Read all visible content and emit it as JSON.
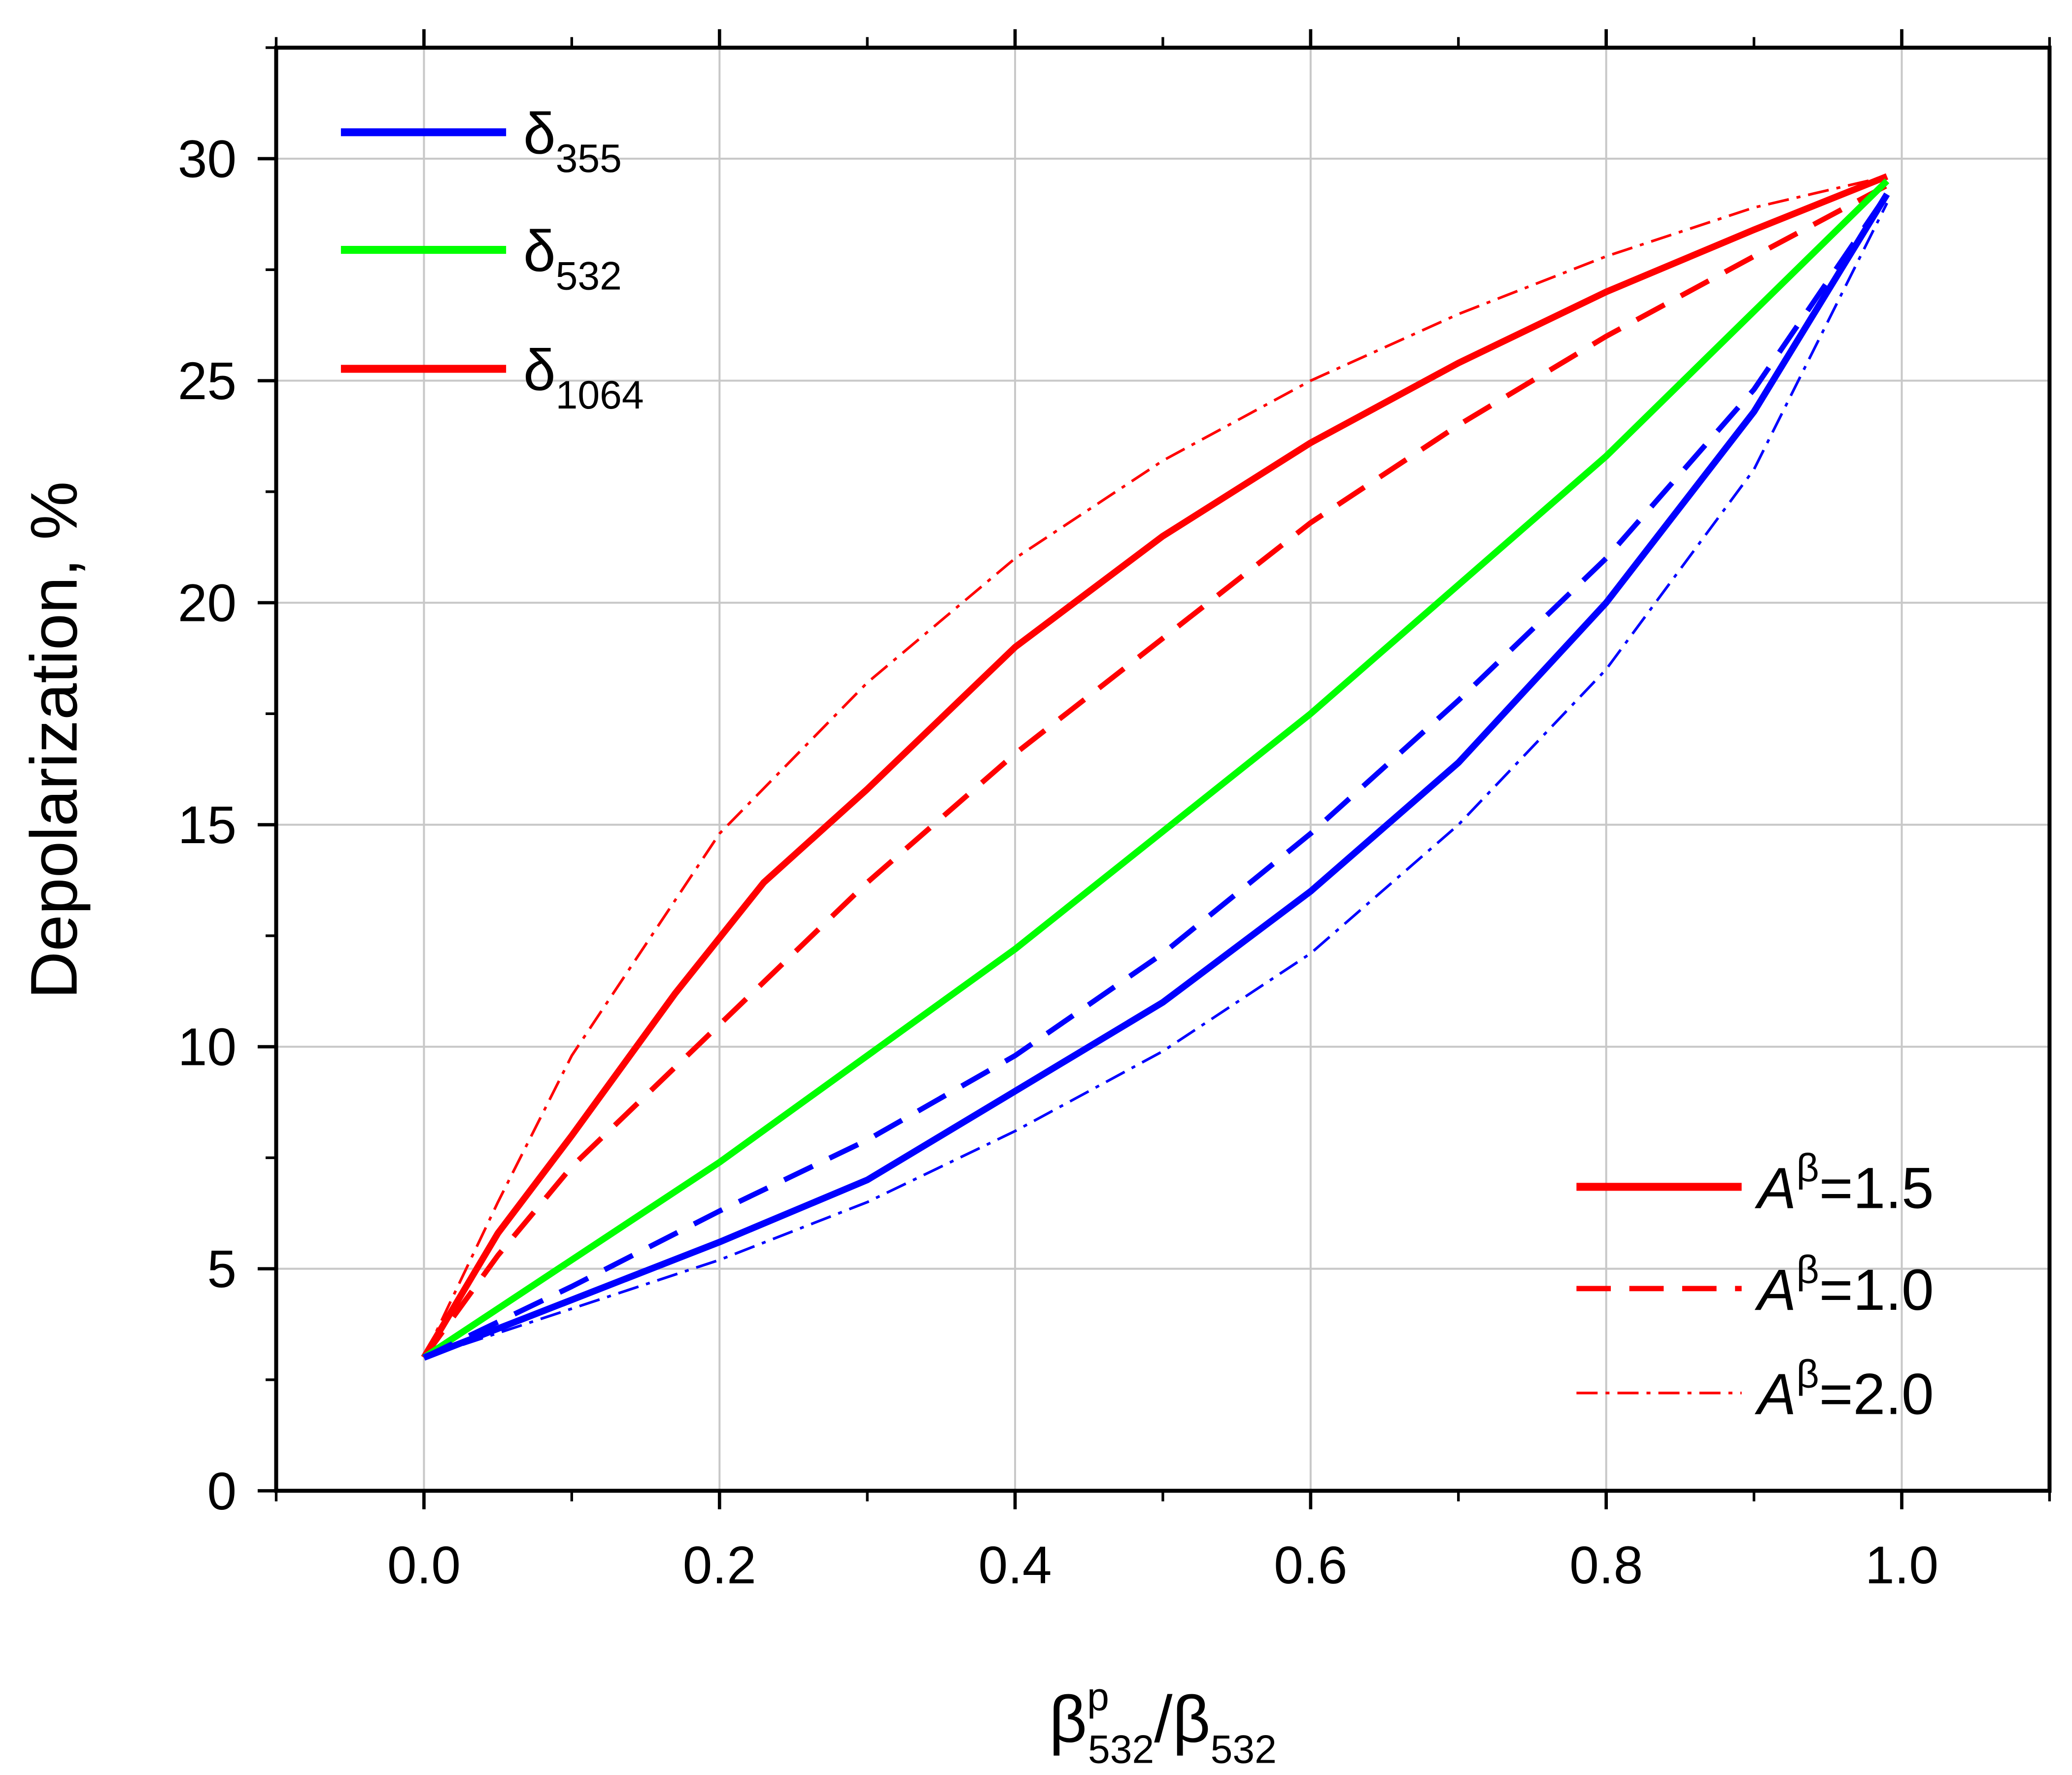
{
  "chart_data": {
    "type": "line",
    "title": "",
    "xlabel": {
      "base": "β",
      "sup": "p",
      "sub": "532",
      "slash": "/β",
      "sub2": "532"
    },
    "ylabel": "Depolarization, %",
    "xlim": [
      -0.1,
      1.1
    ],
    "ylim": [
      0,
      32.5
    ],
    "xticks": [
      "0.0",
      "0.2",
      "0.4",
      "0.6",
      "0.8",
      "1.0"
    ],
    "yticks": [
      "0",
      "5",
      "10",
      "15",
      "20",
      "25",
      "30"
    ],
    "grid": true,
    "legend_color": [
      {
        "base": "δ",
        "sub": "355",
        "color": "#0000ff"
      },
      {
        "base": "δ",
        "sub": "532",
        "color": "#00ff00"
      },
      {
        "base": "δ",
        "sub": "1064",
        "color": "#ff0000"
      }
    ],
    "legend_style": [
      {
        "base": "A",
        "sup": "β",
        "rest": "=1.5",
        "style": "solid"
      },
      {
        "base": "A",
        "sup": "β",
        "rest": "=1.0",
        "style": "dashed"
      },
      {
        "base": "A",
        "sup": "β",
        "rest": "=2.0",
        "style": "dashdot"
      }
    ],
    "legend_placement": [
      "top-left",
      "bottom-right"
    ],
    "series": [
      {
        "name": "δ1064 Aβ=1.5",
        "color": "#ff0000",
        "style": "solid",
        "x": [
          0,
          0.05,
          0.1,
          0.17,
          0.23,
          0.3,
          0.4,
          0.5,
          0.6,
          0.7,
          0.8,
          0.9,
          0.99
        ],
        "y": [
          3,
          5.8,
          8,
          11.2,
          13.7,
          15.8,
          19,
          21.5,
          23.6,
          25.4,
          27,
          28.4,
          29.6
        ]
      },
      {
        "name": "δ1064 Aβ=1.0",
        "color": "#ff0000",
        "style": "dashed",
        "x": [
          0,
          0.05,
          0.1,
          0.2,
          0.3,
          0.4,
          0.5,
          0.6,
          0.7,
          0.8,
          0.9,
          0.99
        ],
        "y": [
          3,
          5.3,
          7.3,
          10.5,
          13.7,
          16.6,
          19.2,
          21.8,
          24,
          26,
          27.8,
          29.4
        ]
      },
      {
        "name": "δ1064 Aβ=2.0",
        "color": "#ff0000",
        "style": "dashdot",
        "x": [
          0,
          0.05,
          0.1,
          0.2,
          0.3,
          0.4,
          0.5,
          0.6,
          0.7,
          0.8,
          0.9,
          0.99
        ],
        "y": [
          3,
          6.5,
          9.8,
          14.8,
          18.2,
          21,
          23.2,
          25,
          26.5,
          27.8,
          28.9,
          29.6
        ]
      },
      {
        "name": "δ532",
        "color": "#00ff00",
        "style": "solid",
        "x": [
          0,
          0.2,
          0.4,
          0.6,
          0.8,
          0.99
        ],
        "y": [
          3,
          7.4,
          12.2,
          17.5,
          23.3,
          29.5
        ]
      },
      {
        "name": "δ355 Aβ=1.5",
        "color": "#0000ff",
        "style": "solid",
        "x": [
          0,
          0.1,
          0.2,
          0.3,
          0.4,
          0.5,
          0.6,
          0.7,
          0.8,
          0.9,
          0.99
        ],
        "y": [
          3,
          4.3,
          5.6,
          7,
          9,
          11,
          13.5,
          16.4,
          20,
          24.3,
          29.2
        ]
      },
      {
        "name": "δ355 Aβ=1.0",
        "color": "#0000ff",
        "style": "dashed",
        "x": [
          0,
          0.1,
          0.2,
          0.3,
          0.4,
          0.5,
          0.6,
          0.7,
          0.8,
          0.9,
          0.99
        ],
        "y": [
          3,
          4.6,
          6.3,
          7.9,
          9.8,
          12.1,
          14.8,
          17.8,
          21,
          24.8,
          29.2
        ]
      },
      {
        "name": "δ355 Aβ=2.0",
        "color": "#0000ff",
        "style": "dashdot",
        "x": [
          0,
          0.1,
          0.2,
          0.3,
          0.4,
          0.5,
          0.6,
          0.7,
          0.8,
          0.9,
          0.99
        ],
        "y": [
          3,
          4.1,
          5.2,
          6.5,
          8.1,
          9.9,
          12.1,
          15,
          18.5,
          23,
          29
        ]
      }
    ]
  }
}
